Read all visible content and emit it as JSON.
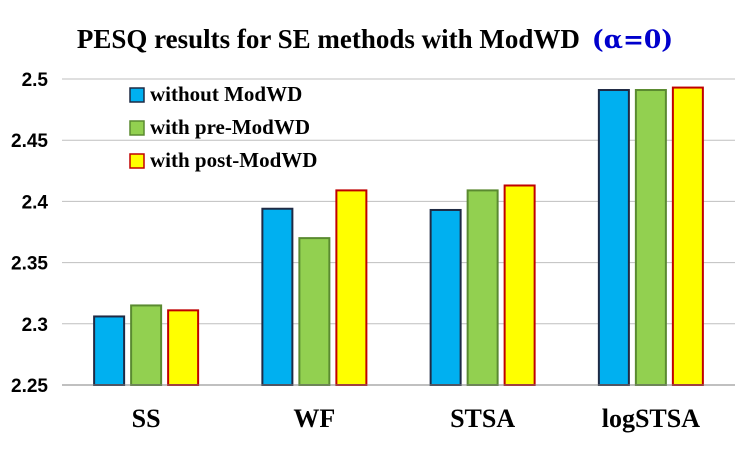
{
  "chart_data": {
    "type": "bar",
    "title": "PESQ results for SE methods with ModWD",
    "title_accent": "(α=0)",
    "xlabel": "",
    "ylabel": "",
    "categories": [
      "SS",
      "WF",
      "STSA",
      "logSTSA"
    ],
    "series": [
      {
        "name": "without ModWD",
        "values": [
          2.306,
          2.394,
          2.393,
          2.491
        ],
        "fill": "#00B0F0",
        "stroke": "#1F2A44"
      },
      {
        "name": "with pre-ModWD",
        "values": [
          2.315,
          2.37,
          2.409,
          2.491
        ],
        "fill": "#92D050",
        "stroke": "#5A8A30"
      },
      {
        "name": "with post-ModWD",
        "values": [
          2.311,
          2.409,
          2.413,
          2.493
        ],
        "fill": "#FFFF00",
        "stroke": "#C00000"
      }
    ],
    "ylim": [
      2.25,
      2.5
    ],
    "yticks": [
      "2.25",
      "2.3",
      "2.35",
      "2.4",
      "2.45",
      "2.5"
    ],
    "grid": true,
    "legend_position": "top-left",
    "colors": {
      "title_accent": "#0000CC",
      "grid": "#BFBFBF",
      "axis": "#808080"
    }
  }
}
